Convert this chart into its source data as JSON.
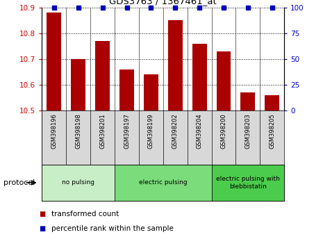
{
  "title": "GDS3763 / 1367461_at",
  "samples": [
    "GSM398196",
    "GSM398198",
    "GSM398201",
    "GSM398197",
    "GSM398199",
    "GSM398202",
    "GSM398204",
    "GSM398200",
    "GSM398203",
    "GSM398205"
  ],
  "bar_values": [
    10.88,
    10.7,
    10.77,
    10.66,
    10.64,
    10.85,
    10.76,
    10.73,
    10.57,
    10.56
  ],
  "percentile_values": [
    100,
    100,
    100,
    100,
    100,
    100,
    100,
    100,
    100,
    100
  ],
  "ylim_left": [
    10.5,
    10.9
  ],
  "ylim_right": [
    0,
    100
  ],
  "yticks_left": [
    10.5,
    10.6,
    10.7,
    10.8,
    10.9
  ],
  "yticks_right": [
    0,
    25,
    50,
    75,
    100
  ],
  "bar_color": "#AA0000",
  "dot_color": "#0000BB",
  "grid_color": "#000000",
  "groups": [
    {
      "label": "no pulsing",
      "start": 0,
      "end": 3,
      "color": "#c8eec8"
    },
    {
      "label": "electric pulsing",
      "start": 3,
      "end": 7,
      "color": "#7adc7a"
    },
    {
      "label": "electric pulsing with\nblebbistatin",
      "start": 7,
      "end": 10,
      "color": "#4ccc4c"
    }
  ],
  "sample_bg_color": "#d8d8d8",
  "protocol_label": "protocol",
  "legend_items": [
    {
      "label": "transformed count",
      "color": "#AA0000"
    },
    {
      "label": "percentile rank within the sample",
      "color": "#0000BB"
    }
  ],
  "tick_label_color_left": "#CC0000",
  "tick_label_color_right": "#0000CC",
  "bg_color": "#ffffff"
}
